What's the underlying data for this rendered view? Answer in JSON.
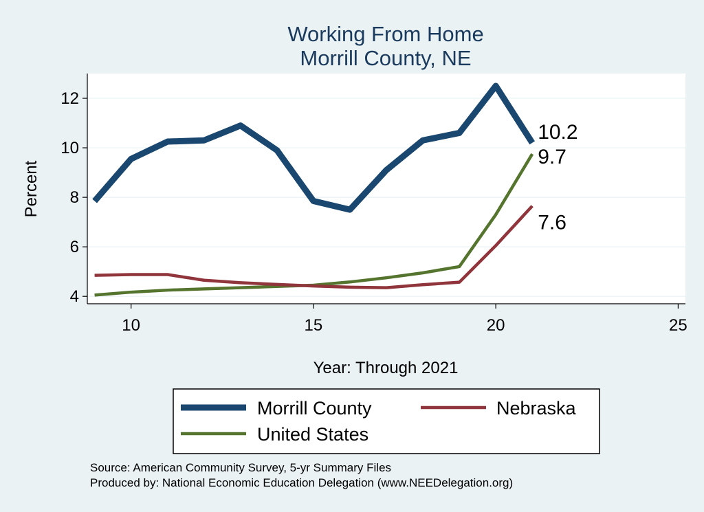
{
  "chart_data": {
    "type": "line",
    "title": "Working From Home",
    "subtitle": "Morrill County, NE",
    "xlabel": "Year: Through 2021",
    "ylabel": "Percent",
    "xlim": [
      8.8,
      25.2
    ],
    "ylim": [
      3.7,
      13.0
    ],
    "x_ticks": [
      10,
      15,
      20,
      25
    ],
    "y_ticks": [
      4,
      6,
      8,
      10,
      12
    ],
    "grid": true,
    "legend_position": "bottom",
    "x": [
      9,
      10,
      11,
      12,
      13,
      14,
      15,
      16,
      17,
      18,
      19,
      20,
      21
    ],
    "series": [
      {
        "name": "Morrill County",
        "color": "#1a476f",
        "values": [
          7.85,
          9.55,
          10.25,
          10.3,
          10.9,
          9.9,
          7.85,
          7.5,
          9.1,
          10.3,
          10.6,
          12.5,
          10.2
        ],
        "end_label": "10.2"
      },
      {
        "name": "Nebraska",
        "color": "#90353b",
        "values": [
          4.85,
          4.88,
          4.88,
          4.65,
          4.55,
          4.48,
          4.42,
          4.37,
          4.35,
          4.47,
          4.57,
          6.05,
          7.65
        ],
        "end_label": "7.6"
      },
      {
        "name": "United States",
        "color": "#55752f",
        "values": [
          4.05,
          4.17,
          4.25,
          4.3,
          4.35,
          4.4,
          4.45,
          4.58,
          4.75,
          4.95,
          5.2,
          7.3,
          9.75
        ],
        "end_label": "9.7"
      }
    ],
    "notes": [
      "Source: American Community Survey, 5-yr Summary Files",
      "Produced by: National Economic Education Delegation (www.NEEDelegation.org)"
    ]
  }
}
